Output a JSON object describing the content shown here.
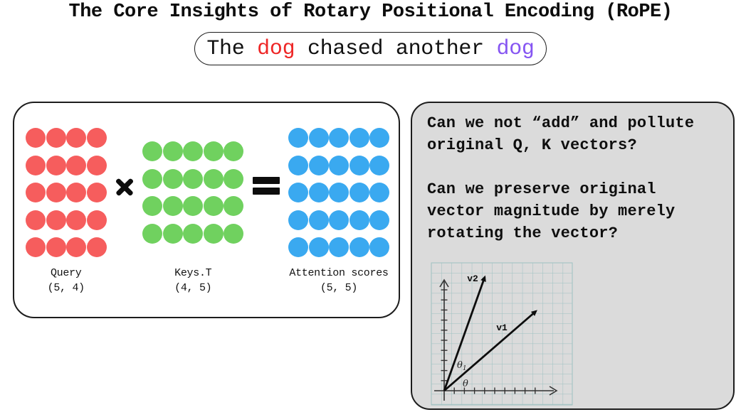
{
  "title": "The Core Insights of Rotary Positional Encoding (RoPE)",
  "sentence": {
    "parts": [
      {
        "text": "The ",
        "color": "#111111"
      },
      {
        "text": "dog",
        "color": "#ee2626"
      },
      {
        "text": " chased another ",
        "color": "#111111"
      },
      {
        "text": "dog",
        "color": "#8655f2"
      }
    ]
  },
  "matmul_panel": {
    "matrices": [
      {
        "name": "Query",
        "shape": "(5, 4)",
        "rows": 5,
        "cols": 4,
        "dot_color": "#f65d5d"
      },
      {
        "name": "Keys.T",
        "shape": "(4, 5)",
        "rows": 4,
        "cols": 5,
        "dot_color": "#70d15f"
      },
      {
        "name": "Attention scores",
        "shape": "(5, 5)",
        "rows": 5,
        "cols": 5,
        "dot_color": "#3aa9f0"
      }
    ],
    "operators": [
      "×",
      "="
    ]
  },
  "question_panel": {
    "background": "#dbdbdb",
    "questions": [
      {
        "lines": [
          "Can we not “add” and pollute",
          "original Q, K vectors?"
        ]
      },
      {
        "lines": [
          "Can we preserve original",
          "vector magnitude by merely",
          "rotating the vector?"
        ]
      }
    ]
  },
  "vector_plot": {
    "labels": {
      "v1": "v1",
      "v2": "v2",
      "theta_base": "θ",
      "theta1_base": "θ",
      "theta1_sub": "1"
    },
    "vectors": [
      {
        "name": "v1",
        "angle_from_x_axis": "θ"
      },
      {
        "name": "v2",
        "angle_from_x_axis": "θ1"
      }
    ],
    "grid_color": "#9dc0c1"
  }
}
